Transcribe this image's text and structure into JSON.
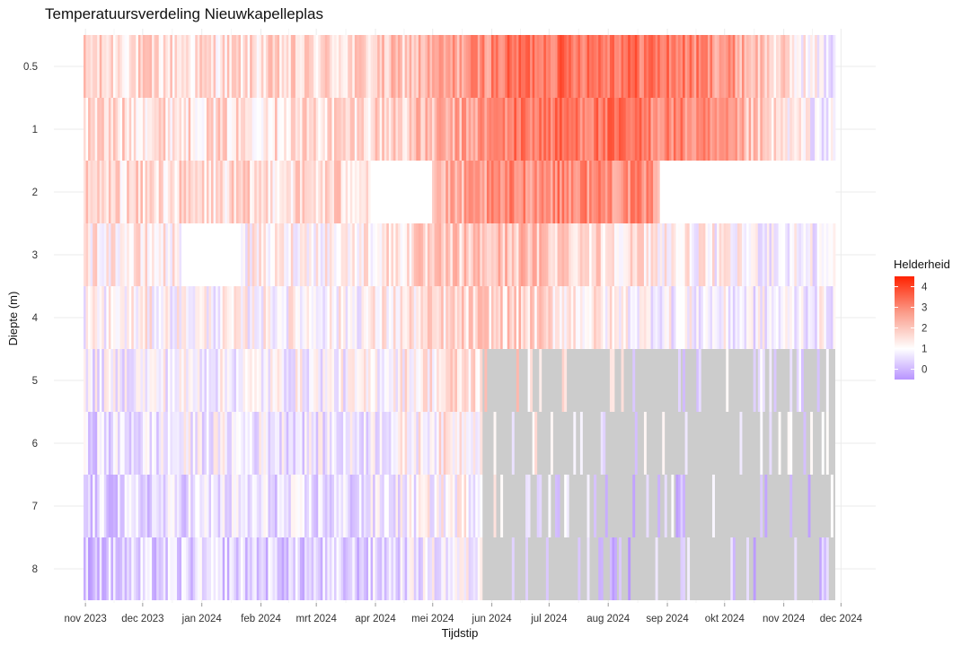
{
  "chart_data": {
    "type": "heatmap",
    "title": "Temperatuursverdeling Nieuwkapelleplas",
    "xlabel": "Tijdstip",
    "ylabel": "Diepte (m)",
    "x_tick_labels": [
      "nov 2023",
      "dec 2023",
      "jan 2024",
      "feb 2024",
      "mrt 2024",
      "apr 2024",
      "mei 2024",
      "jun 2024",
      "jul 2024",
      "aug 2024",
      "sep 2024",
      "okt 2024",
      "nov 2024",
      "dec 2024"
    ],
    "x_range": [
      "2023-10-31",
      "2024-11-28"
    ],
    "depths": [
      0.5,
      1,
      2,
      3,
      4,
      5,
      6,
      7,
      8
    ],
    "y_tick_labels": [
      "0.5",
      "1",
      "2",
      "3",
      "4",
      "5",
      "6",
      "7",
      "8"
    ],
    "y_axis_reversed": true,
    "missing_color": "#cccccc",
    "color_scale": {
      "low": "#b894ff",
      "mid": "#ffffff",
      "high": "#ff2200",
      "midpoint": 1,
      "limits": [
        -0.5,
        4.5
      ]
    },
    "legend": {
      "title": "Helderheid",
      "ticks": [
        "4",
        "3",
        "2",
        "1",
        "0"
      ],
      "tick_values": [
        4,
        3,
        2,
        1,
        0
      ],
      "position": "right"
    },
    "gaps": [
      {
        "depth": 2,
        "start": "2024-03-29",
        "end": "2024-05-01"
      },
      {
        "depth": 2,
        "start": "2024-08-28",
        "end": "2024-11-28"
      },
      {
        "depth": 3,
        "start": "2023-12-21",
        "end": "2024-01-21"
      }
    ],
    "depth_series": [
      {
        "depth": 0.5,
        "mean": [
          1.6,
          1.55,
          1.5,
          1.5,
          1.55,
          1.6,
          1.9,
          2.5,
          3.2,
          3.3,
          3.3,
          3.1,
          2.6,
          1.5,
          0.6
        ],
        "valid_until": "2024-11-28"
      },
      {
        "depth": 1,
        "mean": [
          1.6,
          1.55,
          1.5,
          1.5,
          1.55,
          1.6,
          1.8,
          2.3,
          3.1,
          3.2,
          3.1,
          2.9,
          2.3,
          1.3,
          0.6
        ],
        "valid_until": "2024-11-28"
      },
      {
        "depth": 2,
        "mean": [
          1.6,
          1.55,
          1.5,
          1.5,
          1.55,
          1.6,
          1.8,
          2.2,
          2.8,
          2.9,
          2.8,
          2.5,
          2.0,
          1.2,
          0.7
        ],
        "valid_until": "2024-11-28"
      },
      {
        "depth": 3,
        "mean": [
          1.3,
          1.25,
          1.1,
          1.1,
          1.2,
          1.2,
          1.5,
          1.8,
          2.0,
          1.8,
          1.5,
          1.2,
          1.0,
          0.9,
          0.8
        ],
        "valid_until": "2024-11-28"
      },
      {
        "depth": 4,
        "mean": [
          1.0,
          1.1,
          1.0,
          1.0,
          1.1,
          1.0,
          1.3,
          1.6,
          1.7,
          1.4,
          1.1,
          0.9,
          0.8,
          0.8,
          0.9
        ],
        "valid_until": "2024-11-28"
      },
      {
        "depth": 5,
        "mean": [
          0.7,
          0.9,
          0.9,
          0.9,
          0.9,
          0.9,
          1.2,
          1.5,
          1.5,
          1.2,
          0.9,
          0.7,
          0.6,
          0.7,
          0.8
        ],
        "valid_until": "2024-05-27"
      },
      {
        "depth": 6,
        "mean": [
          0.5,
          0.6,
          0.8,
          0.8,
          0.7,
          0.7,
          1.0,
          1.3,
          1.2,
          0.9,
          0.7,
          0.5,
          0.4,
          0.5,
          0.6
        ],
        "valid_until": "2024-05-27"
      },
      {
        "depth": 7,
        "mean": [
          0.3,
          0.4,
          0.6,
          0.6,
          0.5,
          0.5,
          0.8,
          1.1,
          0.9,
          0.6,
          0.4,
          0.3,
          0.2,
          0.3,
          0.4
        ],
        "valid_until": "2024-05-27"
      },
      {
        "depth": 8,
        "mean": [
          0.2,
          0.3,
          0.4,
          0.4,
          0.3,
          0.3,
          0.6,
          0.9,
          0.6,
          0.3,
          0.2,
          0.1,
          0.1,
          0.2,
          0.2
        ],
        "valid_until": "2024-05-27"
      }
    ]
  }
}
